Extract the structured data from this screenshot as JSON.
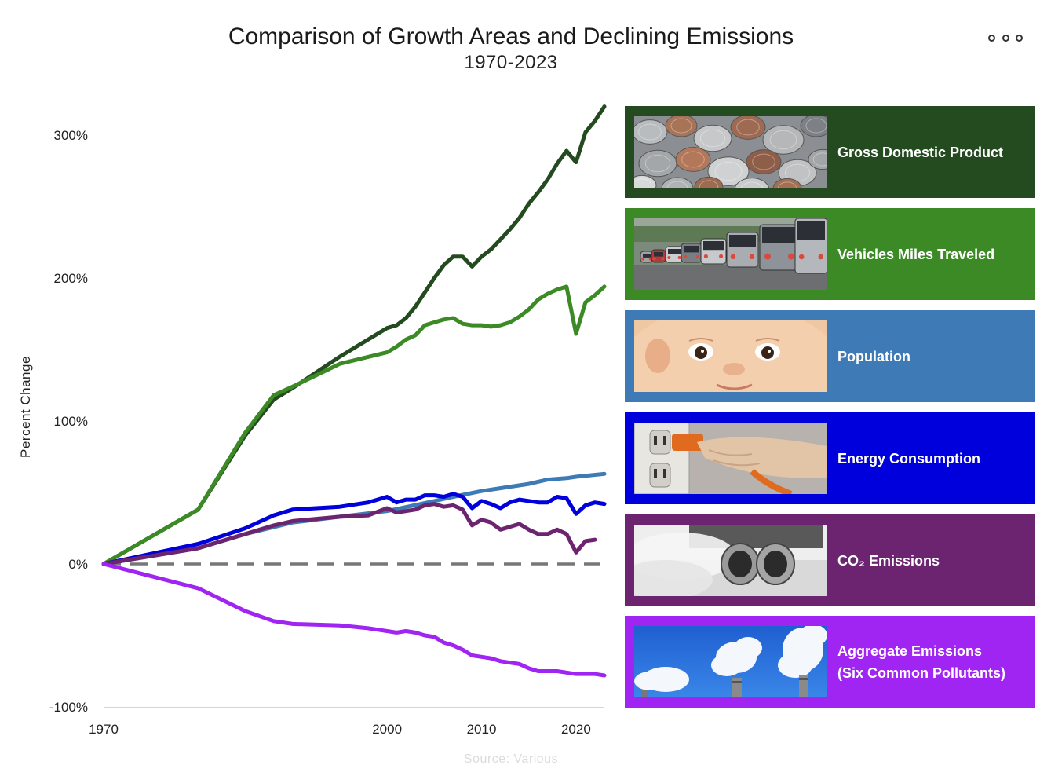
{
  "title": "Comparison of Growth Areas and Declining Emissions",
  "subtitle": "1970-2023",
  "menu_icon": "ellipsis-icon",
  "source": "Source: Various",
  "legend": [
    {
      "label": "Gross Domestic Product",
      "color": "#244a20",
      "image": "coins"
    },
    {
      "label": "Vehicles Miles Traveled",
      "color": "#3c8a26",
      "image": "traffic"
    },
    {
      "label": "Population",
      "color": "#3e7ab5",
      "image": "baby"
    },
    {
      "label": "Energy Consumption",
      "color": "#0000dc",
      "image": "plug"
    },
    {
      "label": "CO₂ Emissions",
      "color": "#6c2470",
      "image": "exhaust"
    },
    {
      "label": "Aggregate Emissions\n(Six Common Pollutants)",
      "color": "#a024f2",
      "image": "smokestacks"
    }
  ],
  "chart_data": {
    "type": "line",
    "title": "Comparison of Growth Areas and Declining Emissions",
    "subtitle": "1970-2023",
    "xlabel": "",
    "ylabel": "Percent Change",
    "xlim": [
      1970,
      2023
    ],
    "ylim": [
      -100,
      320
    ],
    "x_ticks": [
      1970,
      2000,
      2010,
      2020
    ],
    "y_ticks": [
      {
        "value": 300,
        "label": "300%"
      },
      {
        "value": 200,
        "label": "200%"
      },
      {
        "value": 100,
        "label": "100%"
      },
      {
        "value": 0,
        "label": "0%"
      },
      {
        "value": -100,
        "label": "-100%"
      }
    ],
    "grid": false,
    "legend": "right",
    "baseline": {
      "value": 0,
      "style": "dashed",
      "color": "#777777"
    },
    "series": [
      {
        "name": "Gross Domestic Product",
        "color": "#244a20",
        "points": [
          [
            1970,
            0
          ],
          [
            1980,
            38
          ],
          [
            1985,
            90
          ],
          [
            1988,
            115
          ],
          [
            1990,
            123
          ],
          [
            1995,
            145
          ],
          [
            2000,
            165
          ],
          [
            2001,
            167
          ],
          [
            2002,
            172
          ],
          [
            2003,
            180
          ],
          [
            2004,
            190
          ],
          [
            2005,
            200
          ],
          [
            2006,
            209
          ],
          [
            2007,
            215
          ],
          [
            2008,
            215
          ],
          [
            2009,
            208
          ],
          [
            2010,
            215
          ],
          [
            2011,
            220
          ],
          [
            2012,
            227
          ],
          [
            2013,
            234
          ],
          [
            2014,
            242
          ],
          [
            2015,
            252
          ],
          [
            2016,
            260
          ],
          [
            2017,
            269
          ],
          [
            2018,
            280
          ],
          [
            2019,
            289
          ],
          [
            2020,
            281
          ],
          [
            2021,
            302
          ],
          [
            2022,
            310
          ],
          [
            2023,
            320
          ]
        ]
      },
      {
        "name": "Vehicles Miles Traveled",
        "color": "#3c8a26",
        "points": [
          [
            1970,
            0
          ],
          [
            1980,
            38
          ],
          [
            1985,
            92
          ],
          [
            1988,
            118
          ],
          [
            1990,
            124
          ],
          [
            1995,
            140
          ],
          [
            2000,
            148
          ],
          [
            2001,
            152
          ],
          [
            2002,
            157
          ],
          [
            2003,
            160
          ],
          [
            2004,
            167
          ],
          [
            2005,
            169
          ],
          [
            2006,
            171
          ],
          [
            2007,
            172
          ],
          [
            2008,
            168
          ],
          [
            2009,
            167
          ],
          [
            2010,
            167
          ],
          [
            2011,
            166
          ],
          [
            2012,
            167
          ],
          [
            2013,
            169
          ],
          [
            2014,
            173
          ],
          [
            2015,
            178
          ],
          [
            2016,
            185
          ],
          [
            2017,
            189
          ],
          [
            2018,
            192
          ],
          [
            2019,
            194
          ],
          [
            2020,
            161
          ],
          [
            2021,
            183
          ],
          [
            2022,
            188
          ],
          [
            2023,
            194
          ]
        ]
      },
      {
        "name": "Population",
        "color": "#3e7ab5",
        "points": [
          [
            1970,
            0
          ],
          [
            1980,
            11
          ],
          [
            1985,
            21
          ],
          [
            1990,
            29
          ],
          [
            1995,
            33
          ],
          [
            2000,
            37
          ],
          [
            2005,
            44
          ],
          [
            2007,
            47
          ],
          [
            2010,
            51
          ],
          [
            2015,
            56
          ],
          [
            2017,
            59
          ],
          [
            2019,
            60
          ],
          [
            2020,
            61
          ],
          [
            2023,
            63
          ]
        ]
      },
      {
        "name": "Energy Consumption",
        "color": "#0000dc",
        "points": [
          [
            1970,
            0
          ],
          [
            1980,
            14
          ],
          [
            1985,
            25
          ],
          [
            1988,
            34
          ],
          [
            1990,
            38
          ],
          [
            1995,
            40
          ],
          [
            1998,
            43
          ],
          [
            2000,
            47
          ],
          [
            2001,
            43
          ],
          [
            2002,
            45
          ],
          [
            2003,
            45
          ],
          [
            2004,
            48
          ],
          [
            2005,
            48
          ],
          [
            2006,
            47
          ],
          [
            2007,
            49
          ],
          [
            2008,
            47
          ],
          [
            2009,
            39
          ],
          [
            2010,
            44
          ],
          [
            2011,
            42
          ],
          [
            2012,
            39
          ],
          [
            2013,
            43
          ],
          [
            2014,
            45
          ],
          [
            2015,
            44
          ],
          [
            2016,
            43
          ],
          [
            2017,
            43
          ],
          [
            2018,
            47
          ],
          [
            2019,
            46
          ],
          [
            2020,
            35
          ],
          [
            2021,
            41
          ],
          [
            2022,
            43
          ],
          [
            2023,
            42
          ]
        ]
      },
      {
        "name": "CO₂ Emissions",
        "color": "#6c2470",
        "points": [
          [
            1970,
            0
          ],
          [
            1980,
            11
          ],
          [
            1985,
            21
          ],
          [
            1988,
            27
          ],
          [
            1990,
            30
          ],
          [
            1995,
            33
          ],
          [
            1998,
            34
          ],
          [
            2000,
            39
          ],
          [
            2001,
            36
          ],
          [
            2002,
            37
          ],
          [
            2003,
            38
          ],
          [
            2004,
            41
          ],
          [
            2005,
            42
          ],
          [
            2006,
            40
          ],
          [
            2007,
            41
          ],
          [
            2008,
            38
          ],
          [
            2009,
            27
          ],
          [
            2010,
            31
          ],
          [
            2011,
            29
          ],
          [
            2012,
            24
          ],
          [
            2013,
            26
          ],
          [
            2014,
            28
          ],
          [
            2015,
            24
          ],
          [
            2016,
            21
          ],
          [
            2017,
            21
          ],
          [
            2018,
            24
          ],
          [
            2019,
            21
          ],
          [
            2020,
            8
          ],
          [
            2021,
            16
          ],
          [
            2022,
            17
          ]
        ]
      },
      {
        "name": "Aggregate Emissions (Six Common Pollutants)",
        "color": "#a024f2",
        "points": [
          [
            1970,
            0
          ],
          [
            1980,
            -17
          ],
          [
            1985,
            -33
          ],
          [
            1988,
            -40
          ],
          [
            1990,
            -42
          ],
          [
            1995,
            -43
          ],
          [
            1998,
            -45
          ],
          [
            2000,
            -47
          ],
          [
            2001,
            -48
          ],
          [
            2002,
            -47
          ],
          [
            2003,
            -48
          ],
          [
            2004,
            -50
          ],
          [
            2005,
            -51
          ],
          [
            2006,
            -55
          ],
          [
            2007,
            -57
          ],
          [
            2008,
            -60
          ],
          [
            2009,
            -64
          ],
          [
            2010,
            -65
          ],
          [
            2011,
            -66
          ],
          [
            2012,
            -68
          ],
          [
            2013,
            -69
          ],
          [
            2014,
            -70
          ],
          [
            2015,
            -73
          ],
          [
            2016,
            -75
          ],
          [
            2017,
            -75
          ],
          [
            2018,
            -75
          ],
          [
            2019,
            -76
          ],
          [
            2020,
            -77
          ],
          [
            2021,
            -77
          ],
          [
            2022,
            -77
          ],
          [
            2023,
            -78
          ]
        ]
      }
    ]
  }
}
